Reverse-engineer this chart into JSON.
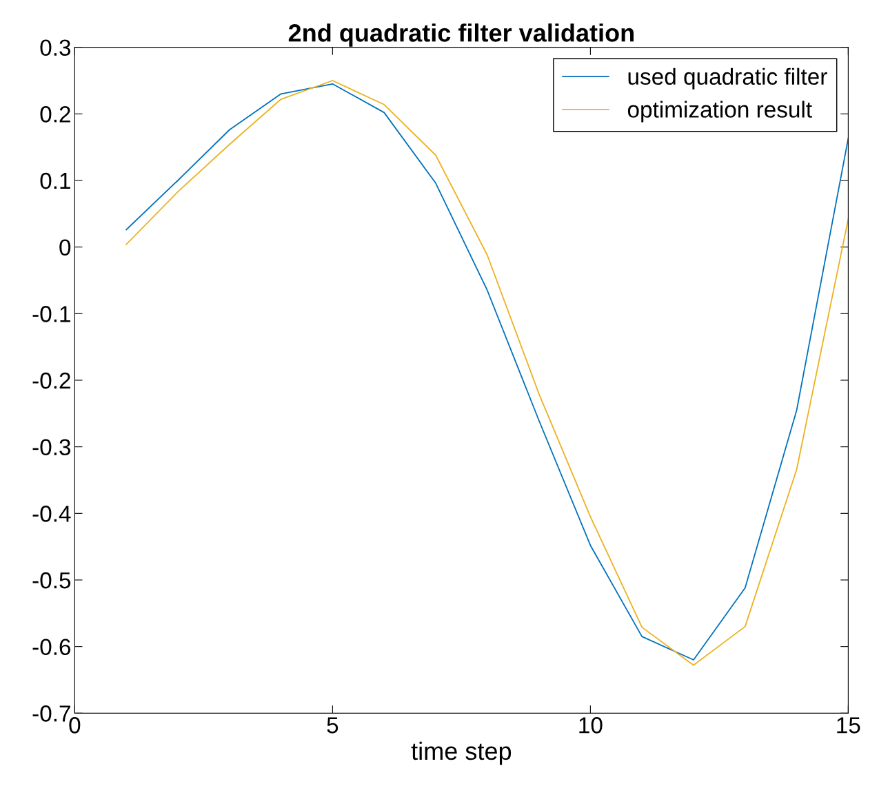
{
  "chart_data": {
    "type": "line",
    "title": "2nd quadratic filter validation",
    "xlabel": "time step",
    "x": [
      1,
      2,
      3,
      4,
      5,
      6,
      7,
      8,
      9,
      10,
      11,
      12,
      13,
      14,
      15
    ],
    "series": [
      {
        "name": "used quadratic filter",
        "color": "#0072bd",
        "values": [
          0.026,
          0.1,
          0.176,
          0.23,
          0.245,
          0.202,
          0.096,
          -0.065,
          -0.26,
          -0.448,
          -0.585,
          -0.62,
          -0.512,
          -0.245,
          0.163
        ]
      },
      {
        "name": "optimization result",
        "color": "#edb120",
        "values": [
          0.004,
          0.083,
          0.154,
          0.222,
          0.25,
          0.214,
          0.138,
          -0.012,
          -0.22,
          -0.405,
          -0.571,
          -0.628,
          -0.57,
          -0.334,
          0.042
        ]
      }
    ],
    "xlim": [
      0,
      15
    ],
    "xticks": [
      0,
      5,
      10,
      15
    ],
    "ylim": [
      -0.7,
      0.3
    ],
    "yticks": [
      -0.7,
      -0.6,
      -0.5,
      -0.4,
      -0.3,
      -0.2,
      -0.1,
      0,
      0.1,
      0.2,
      0.3
    ],
    "grid": false,
    "legend": "top right",
    "line_style": "solid"
  }
}
